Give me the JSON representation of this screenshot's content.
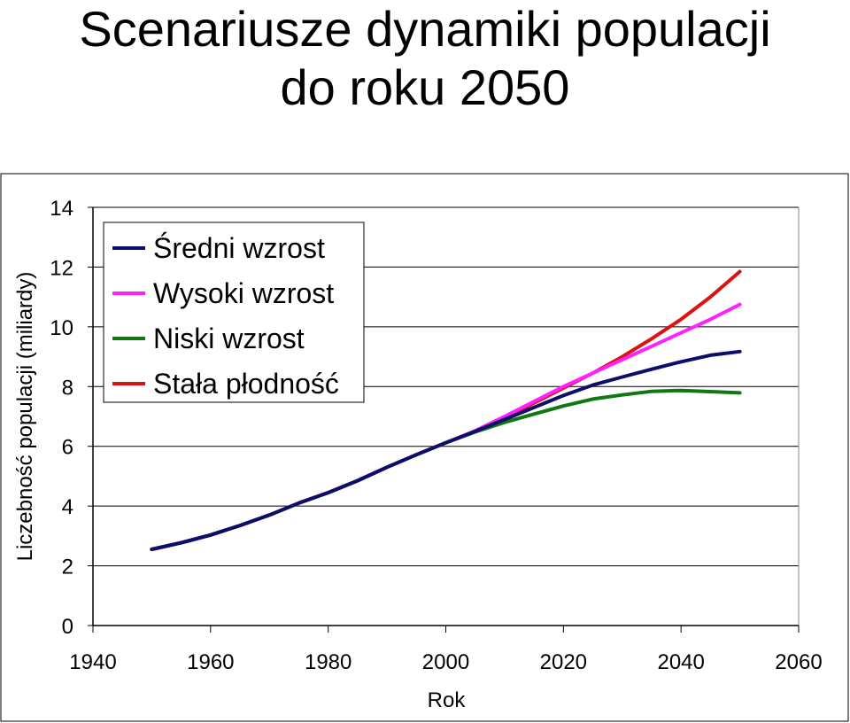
{
  "chart_data": {
    "type": "line",
    "title": "Scenariusze dynamiki populacji do roku 2050",
    "title_lines": [
      "Scenariusze dynamiki populacji",
      "do roku 2050"
    ],
    "xlabel": "Rok",
    "ylabel": "Liczebność populacji (miliardy)",
    "xlim": [
      1940,
      2060
    ],
    "ylim": [
      0,
      14
    ],
    "xticks": [
      1940,
      1960,
      1980,
      2000,
      2020,
      2040,
      2060
    ],
    "yticks": [
      0,
      2,
      4,
      6,
      8,
      10,
      12,
      14
    ],
    "grid": "horizontal",
    "legend_position": "top-left",
    "series": [
      {
        "name": "Średni wzrost",
        "color": "#0d0d6b",
        "x": [
          1950,
          1955,
          1960,
          1965,
          1970,
          1975,
          1980,
          1985,
          1990,
          1995,
          2000,
          2005,
          2010,
          2015,
          2020,
          2025,
          2030,
          2035,
          2040,
          2045,
          2050
        ],
        "y": [
          2.55,
          2.77,
          3.03,
          3.35,
          3.7,
          4.1,
          4.45,
          4.85,
          5.3,
          5.72,
          6.12,
          6.5,
          6.9,
          7.3,
          7.7,
          8.05,
          8.32,
          8.58,
          8.83,
          9.05,
          9.17
        ]
      },
      {
        "name": "Wysoki wzrost",
        "color": "#ff22ff",
        "x": [
          1950,
          1955,
          1960,
          1965,
          1970,
          1975,
          1980,
          1985,
          1990,
          1995,
          2000,
          2005,
          2010,
          2015,
          2020,
          2025,
          2030,
          2035,
          2040,
          2045,
          2050
        ],
        "y": [
          2.55,
          2.77,
          3.03,
          3.35,
          3.7,
          4.1,
          4.45,
          4.85,
          5.3,
          5.72,
          6.12,
          6.52,
          7.0,
          7.5,
          8.0,
          8.45,
          8.9,
          9.35,
          9.8,
          10.25,
          10.75
        ]
      },
      {
        "name": "Niski wzrost",
        "color": "#117711",
        "x": [
          1950,
          1955,
          1960,
          1965,
          1970,
          1975,
          1980,
          1985,
          1990,
          1995,
          2000,
          2005,
          2010,
          2015,
          2020,
          2025,
          2030,
          2035,
          2040,
          2045,
          2050
        ],
        "y": [
          2.55,
          2.77,
          3.03,
          3.35,
          3.7,
          4.1,
          4.45,
          4.85,
          5.3,
          5.72,
          6.12,
          6.48,
          6.8,
          7.08,
          7.35,
          7.58,
          7.72,
          7.84,
          7.87,
          7.83,
          7.79
        ]
      },
      {
        "name": "Stała płodność",
        "color": "#dd1111",
        "x": [
          1950,
          1955,
          1960,
          1965,
          1970,
          1975,
          1980,
          1985,
          1990,
          1995,
          2000,
          2005,
          2010,
          2015,
          2020,
          2025,
          2030,
          2035,
          2040,
          2045,
          2050
        ],
        "y": [
          2.55,
          2.77,
          3.03,
          3.35,
          3.7,
          4.1,
          4.45,
          4.85,
          5.3,
          5.72,
          6.12,
          6.5,
          6.95,
          7.45,
          7.95,
          8.45,
          9.0,
          9.6,
          10.25,
          11.0,
          11.85
        ]
      }
    ]
  }
}
